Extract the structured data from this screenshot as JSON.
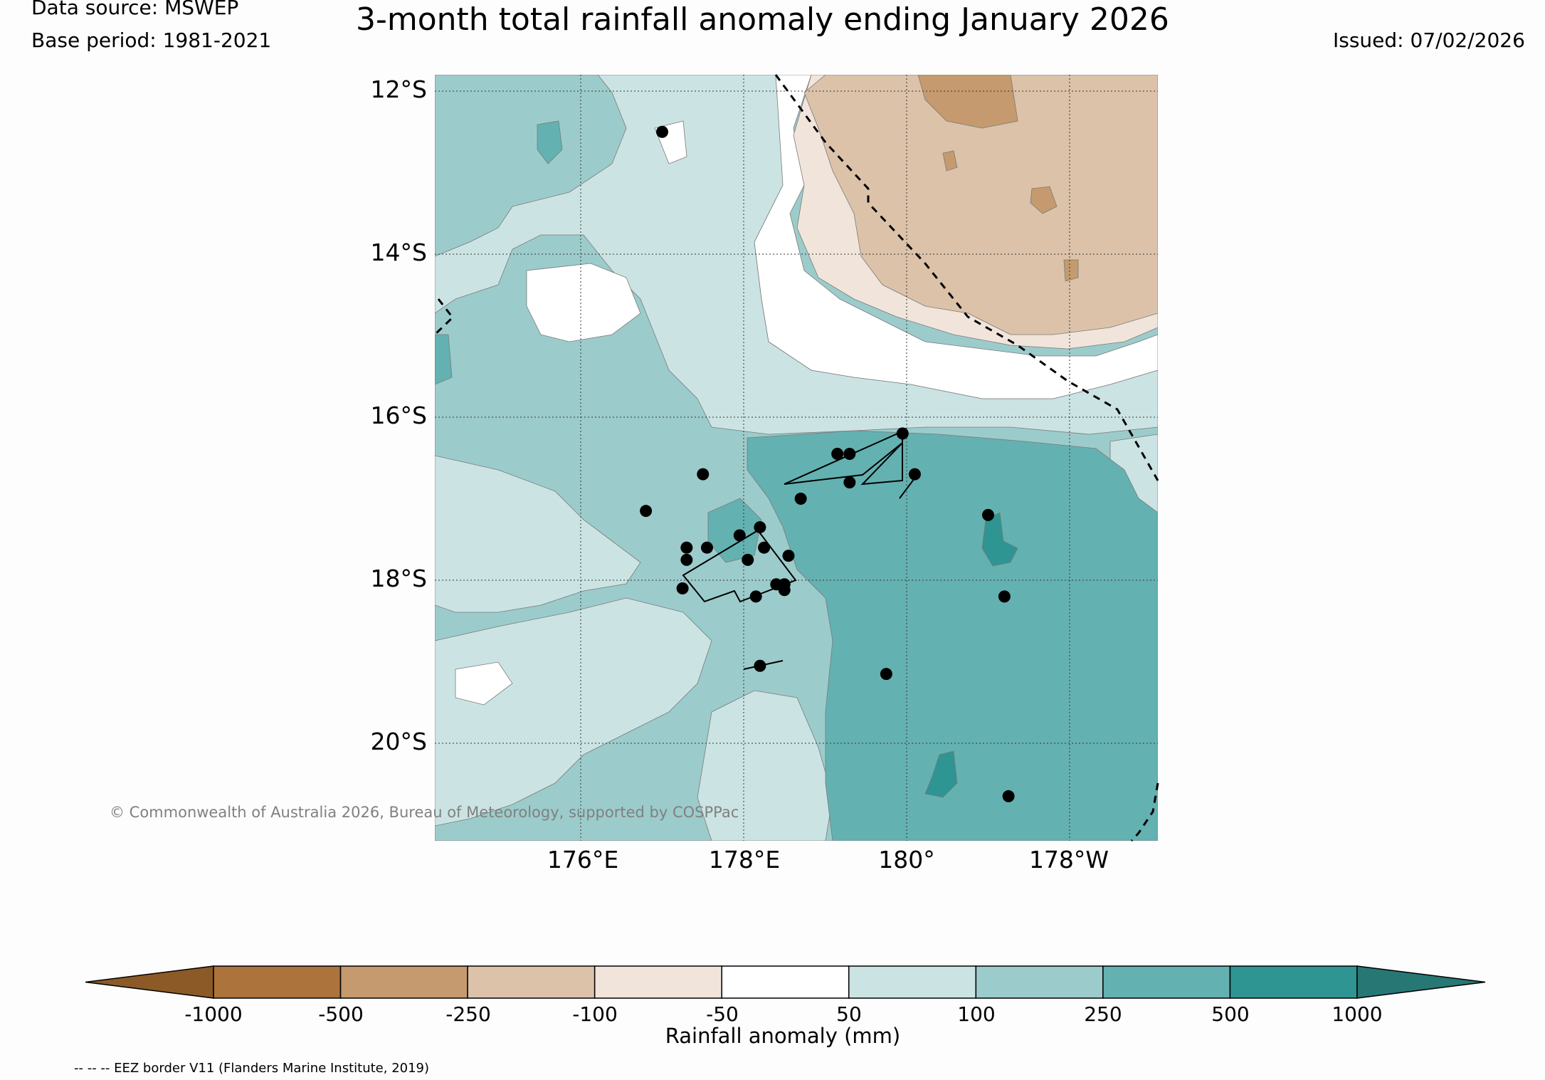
{
  "header": {
    "data_source": "Data source: MSWEP",
    "base_period": "Base period: 1981-2021",
    "title": "3-month total rainfall anomaly ending January 2026",
    "issued": "Issued: 07/02/2026"
  },
  "map": {
    "lat_labels": [
      "12°S",
      "14°S",
      "16°S",
      "18°S",
      "20°S"
    ],
    "lon_labels": [
      "176°E",
      "178°E",
      "180°",
      "178°W"
    ],
    "copyright": "© Commonwealth of Australia 2026, Bureau of Meteorology, supported by COSPPac",
    "extent": {
      "lon": [
        174.2,
        183.1
      ],
      "lat": [
        -21.1,
        -11.8
      ]
    },
    "stations": [
      {
        "lon": 177.0,
        "lat": -12.5
      },
      {
        "lon": 177.5,
        "lat": -16.7
      },
      {
        "lon": 176.8,
        "lat": -17.15
      },
      {
        "lon": 177.3,
        "lat": -17.6
      },
      {
        "lon": 177.3,
        "lat": -17.75
      },
      {
        "lon": 177.55,
        "lat": -17.6
      },
      {
        "lon": 177.25,
        "lat": -18.1
      },
      {
        "lon": 177.95,
        "lat": -17.45
      },
      {
        "lon": 178.2,
        "lat": -17.35
      },
      {
        "lon": 178.25,
        "lat": -17.6
      },
      {
        "lon": 178.05,
        "lat": -17.75
      },
      {
        "lon": 178.55,
        "lat": -17.7
      },
      {
        "lon": 178.4,
        "lat": -18.05
      },
      {
        "lon": 178.5,
        "lat": -18.05
      },
      {
        "lon": 178.5,
        "lat": -18.12
      },
      {
        "lon": 178.15,
        "lat": -18.2
      },
      {
        "lon": 178.7,
        "lat": -17.0
      },
      {
        "lon": 179.15,
        "lat": -16.45
      },
      {
        "lon": 179.3,
        "lat": -16.45
      },
      {
        "lon": 179.3,
        "lat": -16.8
      },
      {
        "lon": 179.95,
        "lat": -16.2
      },
      {
        "lon": 180.1,
        "lat": -16.7
      },
      {
        "lon": 181.0,
        "lat": -17.2
      },
      {
        "lon": 181.2,
        "lat": -18.2
      },
      {
        "lon": 178.2,
        "lat": -19.05
      },
      {
        "lon": 179.75,
        "lat": -19.15
      },
      {
        "lon": 181.25,
        "lat": -20.65
      }
    ]
  },
  "colorbar": {
    "ticks": [
      "-1000",
      "-500",
      "-250",
      "-100",
      "-50",
      "50",
      "100",
      "250",
      "500",
      "1000"
    ],
    "label": "Rainfall anomaly (mm)",
    "low_color": "#8b5a26",
    "colors": [
      "#ad733c",
      "#c49a6e",
      "#dbc2a9",
      "#f1e5db",
      "#ffffff",
      "#cbe4e3",
      "#9ccbcb",
      "#64b1b1",
      "#2e9592"
    ],
    "high_color": "#277775"
  },
  "colors": {
    "below_light": "#f1e5db",
    "below_mid": "#dbc2a9",
    "below_strong": "#c49a6e",
    "above_light": "#cbe4e3",
    "above_mid": "#9ccbcb",
    "above_strong": "#64b1b1",
    "above_very": "#2e9592"
  },
  "footnote": "-- -- -- EEZ border V11 (Flanders Marine Institute, 2019)"
}
